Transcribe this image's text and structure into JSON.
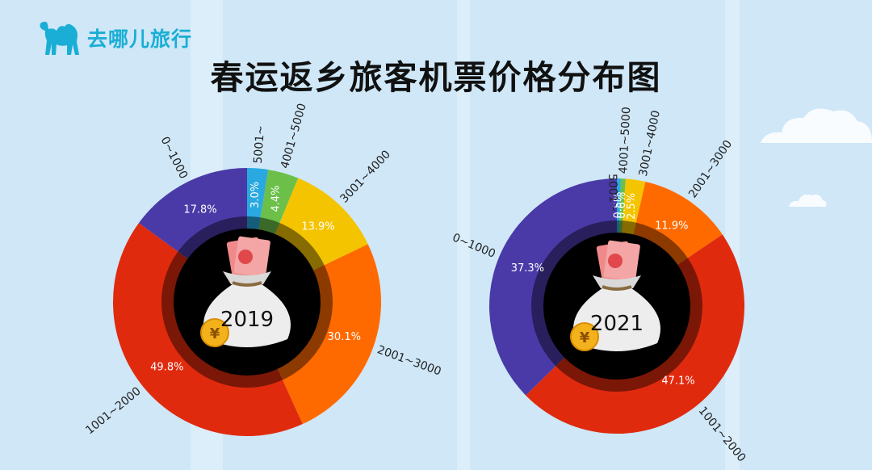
{
  "brand": {
    "name": "去哪儿旅行",
    "logo_icon": "camel-icon",
    "color": "#1aaed6"
  },
  "title": "春运返乡旅客机票价格分布图",
  "chart_data": [
    {
      "type": "pie",
      "center_label": "2019",
      "categories": [
        "5001~",
        "4001~5000",
        "3001~4000",
        "2001~3000",
        "1001~2000",
        "0~1000"
      ],
      "values": [
        3.0,
        4.4,
        13.9,
        30.1,
        49.8,
        17.8
      ],
      "value_labels": [
        "3.0%",
        "4.4%",
        "13.9%",
        "30.1%",
        "49.8%",
        "17.8%"
      ],
      "colors": [
        "#29a9e0",
        "#6cc04a",
        "#f5c400",
        "#ff6a00",
        "#e02a0e",
        "#4a3aa8"
      ]
    },
    {
      "type": "pie",
      "center_label": "2021",
      "categories": [
        "5001~",
        "4001~5000",
        "3001~4000",
        "2001~3000",
        "1001~2000",
        "0~1000"
      ],
      "values": [
        0.5,
        0.6,
        2.5,
        11.9,
        47.1,
        37.3
      ],
      "value_labels": [
        "0.5%",
        "0.6%",
        "2.5%",
        "11.9%",
        "47.1%",
        "37.3%"
      ],
      "colors": [
        "#29a9e0",
        "#6cc04a",
        "#f5c400",
        "#ff6a00",
        "#e02a0e",
        "#4a3aa8"
      ]
    }
  ]
}
